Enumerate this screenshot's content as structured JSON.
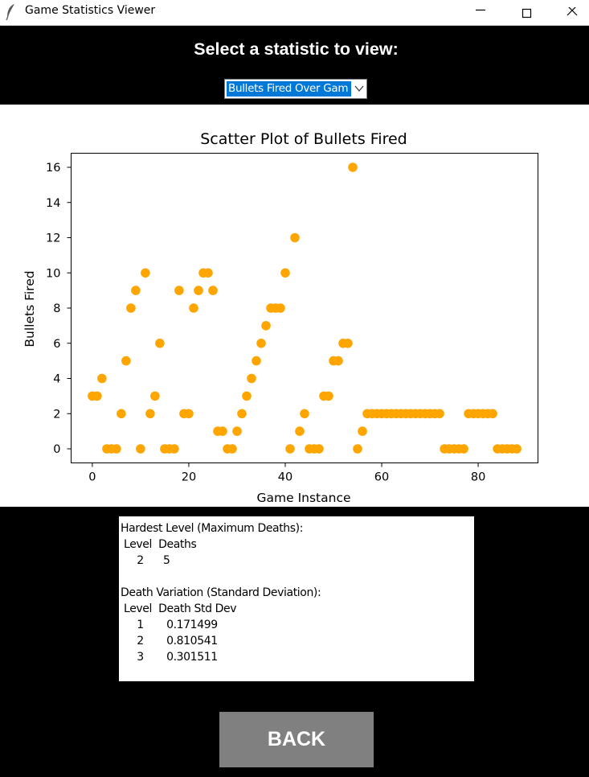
{
  "window": {
    "title": "Game Statistics Viewer"
  },
  "header": {
    "prompt": "Select a statistic to view:",
    "dropdown_value": "Bullets Fired Over Gam"
  },
  "colors": {
    "marker": "#ffa500",
    "background": "#000000",
    "button": "#808080"
  },
  "chart_data": {
    "type": "scatter",
    "title": "Scatter Plot of Bullets Fired",
    "xlabel": "Game Instance",
    "ylabel": "Bullets Fired",
    "xlim": [
      -4.4,
      92.4
    ],
    "ylim": [
      -0.8,
      16.8
    ],
    "xticks": [
      0,
      20,
      40,
      60,
      80
    ],
    "yticks": [
      0,
      2,
      4,
      6,
      8,
      10,
      12,
      14,
      16
    ],
    "grid": false,
    "x": [
      0,
      1,
      2,
      3,
      4,
      5,
      6,
      7,
      8,
      9,
      10,
      11,
      12,
      13,
      14,
      15,
      16,
      17,
      18,
      19,
      20,
      21,
      22,
      23,
      24,
      25,
      26,
      27,
      28,
      29,
      30,
      31,
      32,
      33,
      34,
      35,
      36,
      37,
      38,
      39,
      40,
      41,
      42,
      43,
      44,
      45,
      46,
      47,
      48,
      49,
      50,
      51,
      52,
      53,
      54,
      55,
      56,
      57,
      58,
      59,
      60,
      61,
      62,
      63,
      64,
      65,
      66,
      67,
      68,
      69,
      70,
      71,
      72,
      73,
      74,
      75,
      76,
      77,
      78,
      79,
      80,
      81,
      82,
      83,
      84,
      85,
      86,
      87,
      88
    ],
    "y": [
      3,
      3,
      4,
      0,
      0,
      0,
      2,
      5,
      8,
      9,
      0,
      10,
      2,
      3,
      6,
      0,
      0,
      0,
      9,
      2,
      2,
      8,
      9,
      10,
      10,
      9,
      1,
      1,
      0,
      0,
      1,
      2,
      3,
      4,
      5,
      6,
      7,
      8,
      8,
      8,
      10,
      0,
      12,
      1,
      2,
      0,
      0,
      0,
      3,
      3,
      5,
      5,
      6,
      6,
      16,
      0,
      1,
      2,
      2,
      2,
      2,
      2,
      2,
      2,
      2,
      2,
      2,
      2,
      2,
      2,
      2,
      2,
      2,
      0,
      0,
      0,
      0,
      0,
      2,
      2,
      2,
      2,
      2,
      2,
      0,
      0,
      0,
      0,
      0
    ]
  },
  "stats": {
    "hardest_heading": "Hardest Level (Maximum Deaths):",
    "hardest_header": " Level  Deaths",
    "hardest_row": "     2      5",
    "variation_heading": "Death Variation (Standard Deviation):",
    "variation_header": " Level  Death Std Dev",
    "variation_rows": [
      "     1       0.171499",
      "     2       0.810541",
      "     3       0.301511"
    ]
  },
  "back_label": "BACK"
}
